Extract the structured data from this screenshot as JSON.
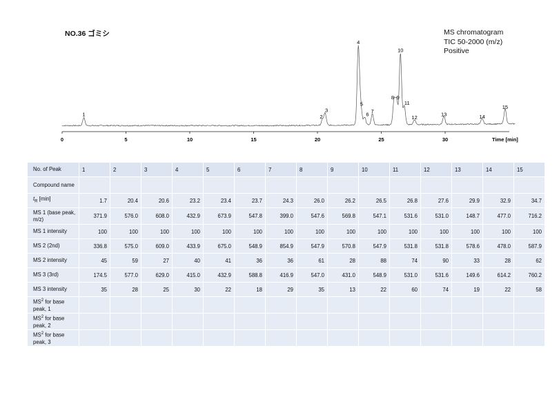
{
  "title": "NO.36 ゴミシ",
  "info": [
    "MS chromatogram",
    "TIC 50-2000 (m/z)",
    "Positive"
  ],
  "chart_data": {
    "type": "line",
    "xlabel": "Time [min]",
    "xlim": [
      0,
      36
    ],
    "x_ticks": [
      0,
      5,
      10,
      15,
      20,
      25,
      30
    ],
    "peaks": [
      {
        "label": "1",
        "x": 1.7,
        "y": 10
      },
      {
        "label": "2",
        "x": 20.4,
        "y": 7
      },
      {
        "label": "3",
        "x": 20.6,
        "y": 15
      },
      {
        "label": "4",
        "x": 23.2,
        "y": 100
      },
      {
        "label": "5",
        "x": 23.4,
        "y": 23
      },
      {
        "label": "6",
        "x": 23.7,
        "y": 10
      },
      {
        "label": "7",
        "x": 24.3,
        "y": 14
      },
      {
        "label": "8",
        "x": 26.0,
        "y": 31
      },
      {
        "label": "9",
        "x": 26.2,
        "y": 31
      },
      {
        "label": "10",
        "x": 26.5,
        "y": 90
      },
      {
        "label": "11",
        "x": 26.8,
        "y": 24
      },
      {
        "label": "12",
        "x": 27.6,
        "y": 6
      },
      {
        "label": "13",
        "x": 29.9,
        "y": 10
      },
      {
        "label": "14",
        "x": 32.9,
        "y": 7
      },
      {
        "label": "15",
        "x": 34.7,
        "y": 19
      }
    ]
  },
  "table": {
    "row_labels": {
      "peak": "No. of Peak",
      "compound": "Compound name",
      "tr": "[min]",
      "ms1": "MS 1 (base peak, m/z)",
      "ms1i": "MS 1 intensity",
      "ms2": "MS 2 (2nd)",
      "ms2i": "MS 2 intensity",
      "ms3": "MS 3 (3rd)",
      "ms3i": "MS 3 intensity",
      "msb1": "for base peak, 1",
      "msb2": "for base peak, 2",
      "msb3": "for base peak, 3"
    },
    "columns": [
      "1",
      "2",
      "3",
      "4",
      "5",
      "6",
      "7",
      "8",
      "9",
      "10",
      "11",
      "12",
      "13",
      "14",
      "15"
    ],
    "tr": [
      "1.7",
      "20.4",
      "20.6",
      "23.2",
      "23.4",
      "23.7",
      "24.3",
      "26.0",
      "26.2",
      "26.5",
      "26.8",
      "27.6",
      "29.9",
      "32.9",
      "34.7"
    ],
    "ms1": [
      "371.9",
      "576.0",
      "608.0",
      "432.9",
      "673.9",
      "547.8",
      "399.0",
      "547.6",
      "569.8",
      "547.1",
      "531.6",
      "531.0",
      "148.7",
      "477.0",
      "716.2"
    ],
    "ms1i": [
      "100",
      "100",
      "100",
      "100",
      "100",
      "100",
      "100",
      "100",
      "100",
      "100",
      "100",
      "100",
      "100",
      "100",
      "100"
    ],
    "ms2": [
      "336.8",
      "575.0",
      "609.0",
      "433.9",
      "675.0",
      "548.9",
      "854.9",
      "547.9",
      "570.8",
      "547.9",
      "531.8",
      "531.8",
      "578.6",
      "478.0",
      "587.9"
    ],
    "ms2i": [
      "45",
      "59",
      "27",
      "40",
      "41",
      "36",
      "36",
      "61",
      "28",
      "88",
      "74",
      "90",
      "33",
      "28",
      "62"
    ],
    "ms3": [
      "174.5",
      "577.0",
      "629.0",
      "415.0",
      "432.9",
      "588.8",
      "416.9",
      "547.0",
      "431.0",
      "548.9",
      "531.0",
      "531.6",
      "149.6",
      "614.2",
      "760.2"
    ],
    "ms3i": [
      "35",
      "28",
      "25",
      "30",
      "22",
      "18",
      "29",
      "35",
      "13",
      "22",
      "60",
      "74",
      "19",
      "22",
      "58"
    ]
  }
}
